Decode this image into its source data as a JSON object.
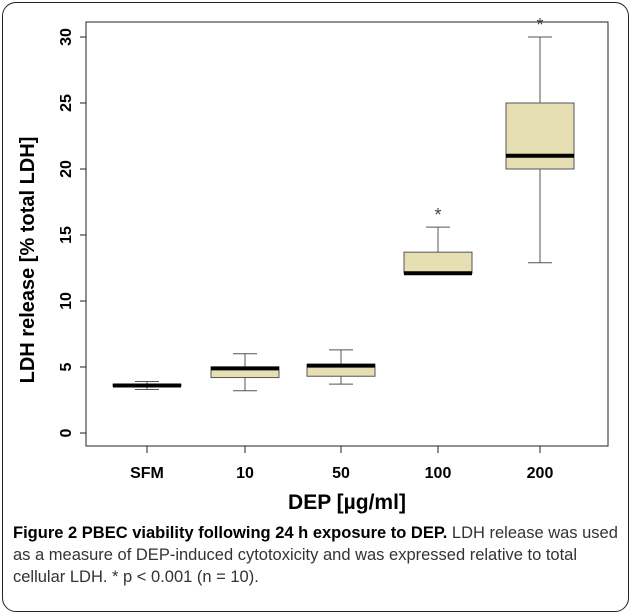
{
  "chart_data": {
    "type": "boxplot",
    "title": "",
    "xlabel": "DEP [µg/ml]",
    "ylabel": "LDH release [% total LDH]",
    "ylim": [
      0,
      30
    ],
    "yticks": [
      0,
      5,
      10,
      15,
      20,
      25,
      30
    ],
    "categories": [
      "SFM",
      "10",
      "50",
      "100",
      "200"
    ],
    "boxes": [
      {
        "category": "SFM",
        "whisker_low": 3.3,
        "q1": 3.55,
        "median": 3.6,
        "q3": 3.7,
        "whisker_high": 3.9,
        "significance": ""
      },
      {
        "category": "10",
        "whisker_low": 3.2,
        "q1": 4.2,
        "median": 4.9,
        "q3": 5.0,
        "whisker_high": 6.0,
        "significance": ""
      },
      {
        "category": "50",
        "whisker_low": 3.7,
        "q1": 4.3,
        "median": 5.1,
        "q3": 5.2,
        "whisker_high": 6.3,
        "significance": ""
      },
      {
        "category": "100",
        "whisker_low": 12.1,
        "q1": 12.1,
        "median": 12.1,
        "q3": 13.7,
        "whisker_high": 15.6,
        "significance": "*"
      },
      {
        "category": "200",
        "whisker_low": 12.9,
        "q1": 20.0,
        "median": 21.0,
        "q3": 25.0,
        "whisker_high": 30.0,
        "significance": "*"
      }
    ],
    "colors": {
      "box_fill": "#e6dfb3",
      "box_stroke": "#555555",
      "median": "#000000",
      "axis": "#222222"
    },
    "grid": false,
    "legend": "none"
  },
  "caption": {
    "label": "Figure 2",
    "title": "PBEC viability following 24 h exposure to DEP.",
    "text": "LDH release was used as a measure of DEP-induced cytotoxicity and was expressed relative to total cellular LDH. * p < 0.001 (n = 10)."
  }
}
